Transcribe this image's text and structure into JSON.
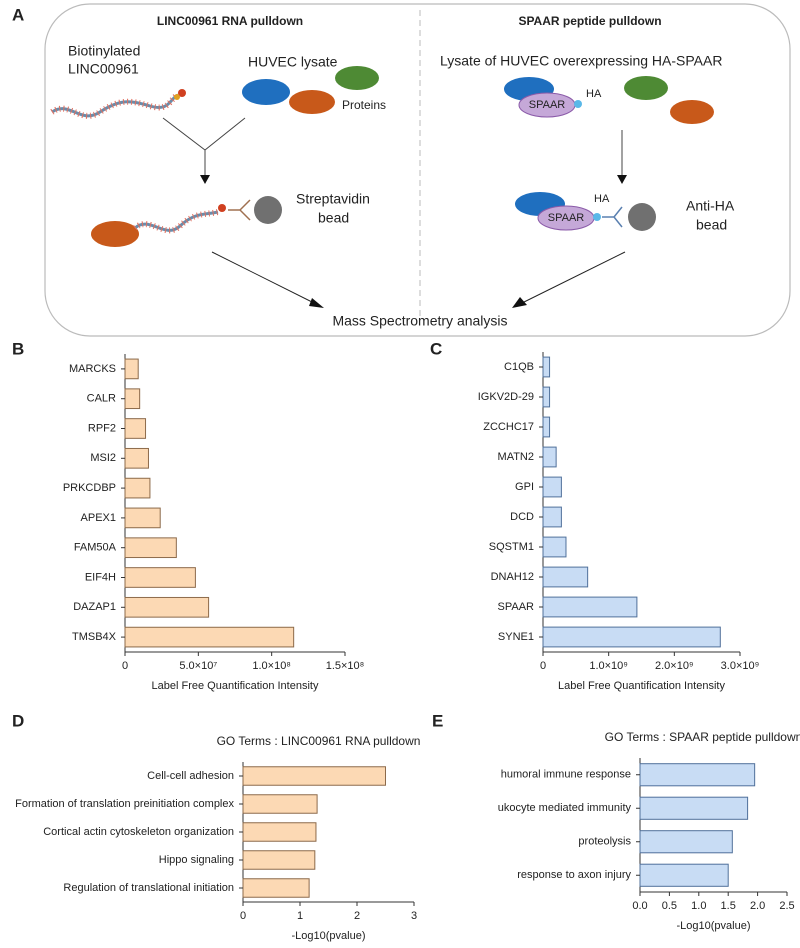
{
  "diagram": {
    "panel_label": "A",
    "left_title": "LINC00961 RNA pulldown",
    "right_title": "SPAAR peptide pulldown",
    "biotinylated": [
      "Biotinylated",
      "LINC00961"
    ],
    "huvec_lysate": "HUVEC lysate",
    "proteins": "Proteins",
    "streptavidin": [
      "Streptavidin",
      "bead"
    ],
    "lysate_overexpressing": "Lysate of HUVEC overexpressing HA-SPAAR",
    "spaar_top": "SPAAR",
    "ha_top": "HA",
    "spaar_bottom": "SPAAR",
    "ha_bottom": "HA",
    "anti_ha": [
      "Anti-HA",
      "bead"
    ],
    "mass_spec": "Mass Spectrometry analysis"
  },
  "chart_data": [
    {
      "type": "hbar",
      "panel_label": "B",
      "categories": [
        "MARCKS",
        "CALR",
        "RPF2",
        "MSI2",
        "PRKCDBP",
        "APEX1",
        "FAM50A",
        "EIF4H",
        "DAZAP1",
        "TMSB4X"
      ],
      "values": [
        9000000,
        10000000,
        14000000,
        16000000,
        17000000,
        24000000,
        35000000,
        48000000,
        57000000,
        115000000
      ],
      "color": "#fcd9b4",
      "edge_color": "#8c6a4a",
      "xlim": [
        0,
        150000000
      ],
      "xticks": [
        0,
        {
          "value": 50000000,
          "label": "5.0×10⁷"
        },
        {
          "value": 100000000,
          "label": "1.0×10⁸"
        },
        {
          "value": 150000000,
          "label": "1.5×10⁸"
        }
      ],
      "xlabel": "Label Free Quantification Intensity"
    },
    {
      "type": "hbar",
      "panel_label": "C",
      "categories": [
        "C1QB",
        "IGKV2D-29",
        "ZCCHC17",
        "MATN2",
        "GPI",
        "DCD",
        "SQSTM1",
        "DNAH12",
        "SPAAR",
        "SYNE1"
      ],
      "values": [
        100000000,
        100000000,
        100000000,
        200000000,
        280000000,
        280000000,
        350000000,
        680000000,
        1430000000,
        2700000000
      ],
      "color": "#c8dcf4",
      "edge_color": "#50709a",
      "xlim": [
        0,
        3000000000
      ],
      "xticks": [
        0,
        {
          "value": 1000000000,
          "label": "1.0×10⁹"
        },
        {
          "value": 2000000000,
          "label": "2.0×10⁹"
        },
        {
          "value": 3000000000,
          "label": "3.0×10⁹"
        }
      ],
      "xlabel": "Label Free Quantification Intensity"
    },
    {
      "type": "hbar",
      "panel_label": "D",
      "title": "GO Terms : LINC00961 RNA pulldown",
      "categories": [
        "Cell-cell adhesion",
        "Formation of translation preinitiation complex",
        "Cortical actin cytoskeleton organization",
        "Hippo signaling",
        "Regulation of translational initiation"
      ],
      "values": [
        2.5,
        1.3,
        1.28,
        1.26,
        1.16
      ],
      "color": "#fcd9b4",
      "edge_color": "#8c6a4a",
      "xlim": [
        0,
        3
      ],
      "xticks": [
        0,
        1,
        2,
        3
      ],
      "xlabel": "-Log10(pvalue)"
    },
    {
      "type": "hbar",
      "panel_label": "E",
      "title": "GO Terms : SPAAR peptide pulldown",
      "categories": [
        "humoral immune response",
        "ukocyte mediated immunity",
        "proteolysis",
        "response to axon injury"
      ],
      "values": [
        1.95,
        1.83,
        1.57,
        1.5
      ],
      "color": "#c8dcf4",
      "edge_color": "#50709a",
      "xlim": [
        0,
        2.5
      ],
      "xticks": [
        {
          "value": 0,
          "label": "0.0"
        },
        0.5,
        {
          "value": 1,
          "label": "1.0"
        },
        1.5,
        {
          "value": 2,
          "label": "2.0"
        },
        2.5
      ],
      "xlabel": "-Log10(pvalue)"
    }
  ]
}
